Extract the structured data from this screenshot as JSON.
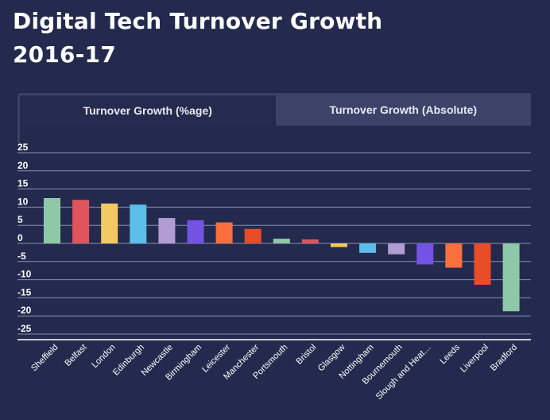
{
  "page": {
    "title_line1": "Digital Tech Turnover Growth",
    "title_line2": "2016-17"
  },
  "tabs": [
    {
      "label": "Turnover Growth (%age)",
      "active": true
    },
    {
      "label": "Turnover Growth (Absolute)",
      "active": false
    }
  ],
  "chart_data": {
    "type": "bar",
    "title": "Digital Tech Turnover Growth 2016-17",
    "xlabel": "",
    "ylabel": "",
    "ylim": [
      -25,
      25
    ],
    "yticks": [
      25,
      20,
      15,
      10,
      5,
      0,
      -5,
      -10,
      -15,
      -20,
      -25
    ],
    "grid": true,
    "categories": [
      "Sheffield",
      "Belfast",
      "London",
      "Edinburgh",
      "Newcastle",
      "Birmingham",
      "Leicester",
      "Manchester",
      "Portsmouth",
      "Bristol",
      "Glasgow",
      "Nottingham",
      "Bournemouth",
      "Slough and Heat…",
      "Leeds",
      "Liverpool",
      "Bradford"
    ],
    "values": [
      12.5,
      12,
      11,
      10.7,
      7,
      6.4,
      5.8,
      4,
      1.3,
      1.1,
      -1,
      -2.6,
      -3,
      -5.8,
      -6.7,
      -11.4,
      -18.7
    ],
    "colors": [
      "#8ec8a8",
      "#e0555c",
      "#f2ca62",
      "#5bbde8",
      "#b29cd4",
      "#7452e3",
      "#fb6f3c",
      "#e84c28",
      "#8ec8a8",
      "#e0555c",
      "#f2ca62",
      "#5bbde8",
      "#b29cd4",
      "#7452e3",
      "#fb6f3c",
      "#e84c28",
      "#8ec8a8"
    ]
  }
}
